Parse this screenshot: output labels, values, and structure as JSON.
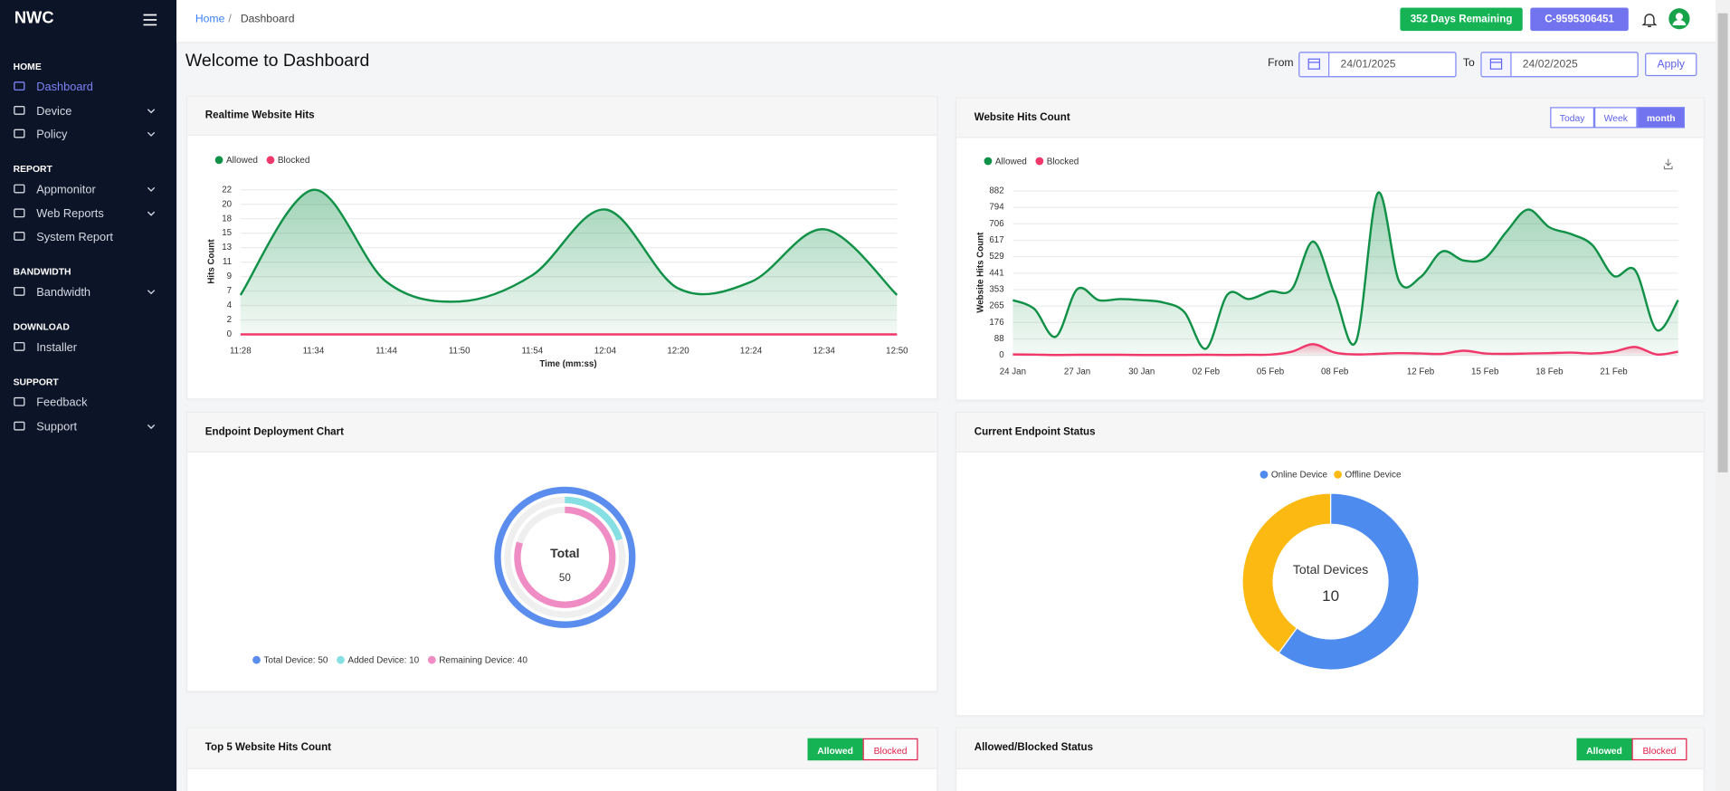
{
  "sidebar": {
    "brand": "NWC",
    "sections": [
      {
        "title": "HOME",
        "items": [
          {
            "label": "Dashboard",
            "active": true
          },
          {
            "label": "Device",
            "expandable": true
          },
          {
            "label": "Policy",
            "expandable": true
          }
        ]
      },
      {
        "title": "REPORT",
        "items": [
          {
            "label": "Appmonitor",
            "expandable": true
          },
          {
            "label": "Web Reports",
            "expandable": true
          },
          {
            "label": "System Report"
          }
        ]
      },
      {
        "title": "BANDWIDTH",
        "items": [
          {
            "label": "Bandwidth",
            "expandable": true
          }
        ]
      },
      {
        "title": "DOWNLOAD",
        "items": [
          {
            "label": "Installer"
          }
        ]
      },
      {
        "title": "SUPPORT",
        "items": [
          {
            "label": "Feedback"
          },
          {
            "label": "Support",
            "expandable": true
          }
        ]
      }
    ]
  },
  "header": {
    "breadcrumb": [
      "Home",
      "Dashboard"
    ],
    "separator": "/",
    "days_remaining": "352 Days Remaining",
    "customer_id": "C-9595306451"
  },
  "page": {
    "title": "Welcome to Dashboard",
    "from_label": "From",
    "from_date": "24/01/2025",
    "to_label": "To",
    "to_date": "24/02/2025",
    "apply": "Apply"
  },
  "chart_data": [
    {
      "type": "area",
      "title": "Realtime Website Hits",
      "y_label": "Hits Count",
      "x_label": "Time (mm:ss)",
      "categories": [
        "11:28",
        "11:34",
        "11:44",
        "11:50",
        "11:54",
        "12:04",
        "12:20",
        "12:24",
        "12:34",
        "12:50"
      ],
      "series": [
        {
          "name": "Allowed",
          "color": "#119148",
          "values": [
            6,
            22,
            8,
            5,
            9,
            19,
            7,
            8,
            16,
            6
          ]
        },
        {
          "name": "Blocked",
          "color": "#f0386b",
          "values": [
            0,
            0,
            0,
            0,
            0,
            0,
            0,
            0,
            0,
            0
          ]
        }
      ],
      "ylim": [
        0,
        22
      ],
      "yticks": [
        0,
        {
          "value": 2.2,
          "label": "2"
        },
        {
          "value": 4.4,
          "label": "4"
        },
        {
          "value": 6.6,
          "label": "7"
        },
        {
          "value": 8.8,
          "label": "9"
        },
        11,
        {
          "value": 13.2,
          "label": "13"
        },
        {
          "value": 15.4,
          "label": "15"
        },
        {
          "value": 17.6,
          "label": "18"
        },
        {
          "value": 19.8,
          "label": "20"
        },
        22
      ],
      "grid": true
    },
    {
      "type": "area",
      "title": "Website Hits Count",
      "y_label": "Website Hits Count",
      "buttons": [
        "Today",
        "Week",
        "month"
      ],
      "active_button": 2,
      "categories": [
        "24 Jan",
        null,
        null,
        "27 Jan",
        null,
        null,
        "30 Jan",
        null,
        null,
        "02 Feb",
        null,
        null,
        "05 Feb",
        null,
        null,
        "08 Feb",
        null,
        null,
        null,
        "12 Feb",
        null,
        null,
        "15 Feb",
        null,
        null,
        "18 Feb",
        null,
        null,
        "21 Feb",
        null,
        null,
        null
      ],
      "series": [
        {
          "name": "Allowed",
          "color": "#119148",
          "values": [
            296,
            249,
            100,
            355,
            296,
            302,
            296,
            284,
            231,
            36,
            326,
            302,
            343,
            355,
            610,
            326,
            77,
            870,
            397,
            420,
            557,
            509,
            521,
            663,
            782,
            687,
            651,
            592,
            426,
            456,
            136,
            296
          ]
        },
        {
          "name": "Blocked",
          "color": "#f0386b",
          "values": [
            5,
            4,
            2,
            3,
            3,
            3,
            2,
            2,
            2,
            3,
            2,
            3,
            4,
            20,
            60,
            15,
            5,
            8,
            12,
            10,
            8,
            25,
            10,
            8,
            10,
            12,
            15,
            10,
            20,
            45,
            5,
            20
          ]
        }
      ],
      "ylim": [
        0,
        882
      ],
      "yticks": [
        0,
        {
          "value": 88.2,
          "label": "88"
        },
        {
          "value": 176.4,
          "label": "176"
        },
        {
          "value": 264.6,
          "label": "265"
        },
        {
          "value": 352.8,
          "label": "353"
        },
        441,
        {
          "value": 529.2,
          "label": "529"
        },
        {
          "value": 617.4,
          "label": "617"
        },
        {
          "value": 705.6,
          "label": "706"
        },
        {
          "value": 793.8,
          "label": "794"
        },
        882
      ],
      "grid": true
    },
    {
      "type": "radialBar",
      "title": "Endpoint Deployment Chart",
      "center_label": "Total",
      "center_value": 50,
      "labels": [
        "Total Device: 50",
        "Added Device: 10",
        "Remaining Device: 40"
      ],
      "values": [
        50,
        10,
        40
      ],
      "colors": [
        "#5b8def",
        "#86dfe3",
        "#f08cc4"
      ]
    },
    {
      "type": "donut",
      "title": "Current Endpoint Status",
      "center_label": "Total Devices",
      "center_value": 10,
      "labels": [
        "Online Device",
        "Offline Device"
      ],
      "values": [
        6,
        4
      ],
      "colors": [
        "#4d8bef",
        "#fbb911"
      ]
    }
  ],
  "cards": [
    {
      "title": "Top 5 Website Hits Count",
      "buttons": [
        "Allowed",
        "Blocked"
      ],
      "active": 0
    },
    {
      "title": "Allowed/Blocked Status",
      "buttons": [
        "Allowed",
        "Blocked"
      ],
      "active": 0
    }
  ]
}
